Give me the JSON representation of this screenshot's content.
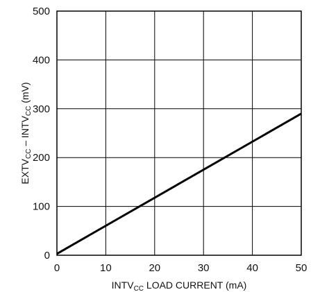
{
  "chart_data": {
    "type": "line",
    "xlabel": {
      "pre": "INTV",
      "sub": "CC",
      "post": " LOAD CURRENT (mA)"
    },
    "ylabel": {
      "pre": "EXTV",
      "sub1": "CC",
      "mid": " – INTV",
      "sub2": "CC",
      "post": " (mV)"
    },
    "xlim": [
      0,
      50
    ],
    "ylim": [
      0,
      500
    ],
    "x_ticks": [
      0,
      10,
      20,
      30,
      40,
      50
    ],
    "y_ticks": [
      0,
      100,
      200,
      300,
      400,
      500
    ],
    "grid": true,
    "series": [
      {
        "x": [
          0,
          50
        ],
        "y": [
          3,
          290
        ],
        "color": "#000000"
      }
    ]
  }
}
